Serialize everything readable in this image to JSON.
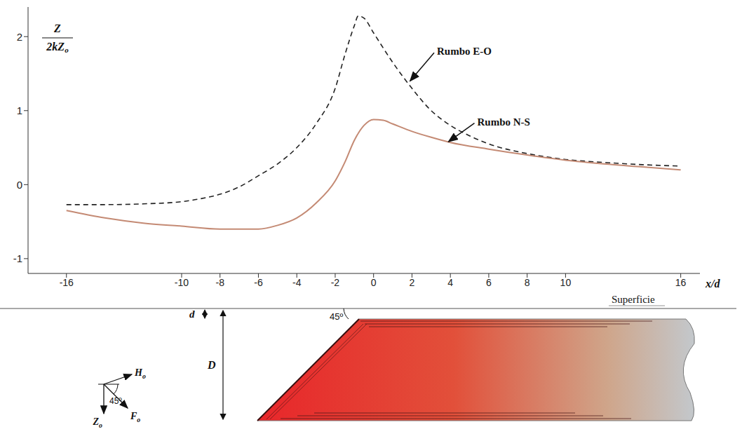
{
  "chart_data": {
    "type": "line",
    "y_label": {
      "numerator": "Z",
      "denominator": "2kZ",
      "denominator_sub": "o"
    },
    "x_label": "x/d",
    "xlim": [
      -18,
      17
    ],
    "ylim": [
      -1.2,
      2.4
    ],
    "xticks": [
      -16,
      -10,
      -8,
      -6,
      -4,
      -2,
      0,
      2,
      4,
      6,
      8,
      10,
      16
    ],
    "yticks": [
      -1,
      0,
      1,
      2
    ],
    "grid": false,
    "series": [
      {
        "name": "Rumbo E-O",
        "color": "#222222",
        "line_style": "dashed",
        "x": [
          -16,
          -14,
          -12,
          -10,
          -9,
          -8,
          -7,
          -6,
          -5,
          -4,
          -3,
          -2,
          -1.5,
          -1,
          -0.8,
          -0.5,
          0,
          1,
          2,
          3,
          4,
          5,
          6,
          8,
          10,
          12,
          14,
          16
        ],
        "values": [
          -0.27,
          -0.27,
          -0.26,
          -0.23,
          -0.19,
          -0.13,
          -0.03,
          0.12,
          0.28,
          0.5,
          0.82,
          1.3,
          1.75,
          2.15,
          2.28,
          2.25,
          2.05,
          1.65,
          1.3,
          1.0,
          0.8,
          0.66,
          0.55,
          0.42,
          0.34,
          0.3,
          0.27,
          0.25
        ]
      },
      {
        "name": "Rumbo N-S",
        "color": "#c48a74",
        "line_style": "solid",
        "x": [
          -16,
          -14,
          -12,
          -10,
          -8,
          -6,
          -5,
          -4,
          -3,
          -2,
          -1.5,
          -1,
          -0.5,
          0,
          0.5,
          1,
          2,
          3,
          4,
          6,
          8,
          10,
          12,
          14,
          16
        ],
        "values": [
          -0.35,
          -0.45,
          -0.52,
          -0.56,
          -0.6,
          -0.6,
          -0.55,
          -0.45,
          -0.25,
          0.05,
          0.3,
          0.6,
          0.8,
          0.88,
          0.87,
          0.82,
          0.72,
          0.64,
          0.57,
          0.48,
          0.4,
          0.33,
          0.28,
          0.24,
          0.2
        ]
      }
    ]
  },
  "diagram": {
    "surface": "Superficie",
    "depth_top": "d",
    "thickness": "D",
    "dip_angle": "45º",
    "field_angle": "45º",
    "vectors": [
      {
        "base": "H",
        "sub": "o"
      },
      {
        "base": "F",
        "sub": "o"
      },
      {
        "base": "Z",
        "sub": "o"
      }
    ]
  }
}
